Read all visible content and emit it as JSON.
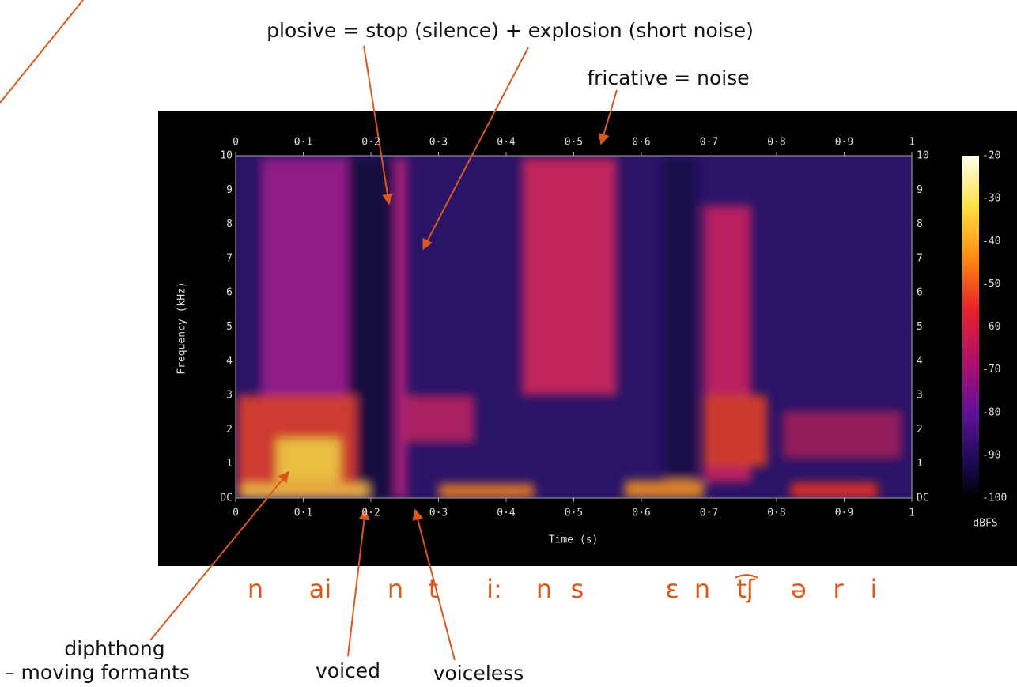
{
  "annotations": {
    "plosive": "plosive  = stop (silence) + explosion (short noise)",
    "fricative": "fricative = noise",
    "diphthong": "diphthong",
    "diphthong_sub": "– moving formants",
    "voiced": "voiced",
    "voiceless": "voiceless"
  },
  "spectrogram": {
    "x_label": "Time (s)",
    "y_label": "Frequency (kHz)",
    "time_ticks": [
      "0",
      "0·1",
      "0·2",
      "0·3",
      "0·4",
      "0·5",
      "0·6",
      "0·7",
      "0·8",
      "0·9",
      "1"
    ],
    "freq_ticks": [
      "10",
      "9",
      "8",
      "7",
      "6",
      "5",
      "4",
      "3",
      "2",
      "1",
      "DC"
    ],
    "colorbar_ticks": [
      "-20",
      "-30",
      "-40",
      "-50",
      "-60",
      "-70",
      "-80",
      "-90",
      "-100"
    ],
    "colorbar_label": "dBFS"
  },
  "phonemes": [
    "n",
    "ai",
    "n",
    "t",
    "i:",
    "n",
    "s",
    "ɛ",
    "n",
    "t͡ʃ",
    "ə",
    "r",
    "i"
  ]
}
